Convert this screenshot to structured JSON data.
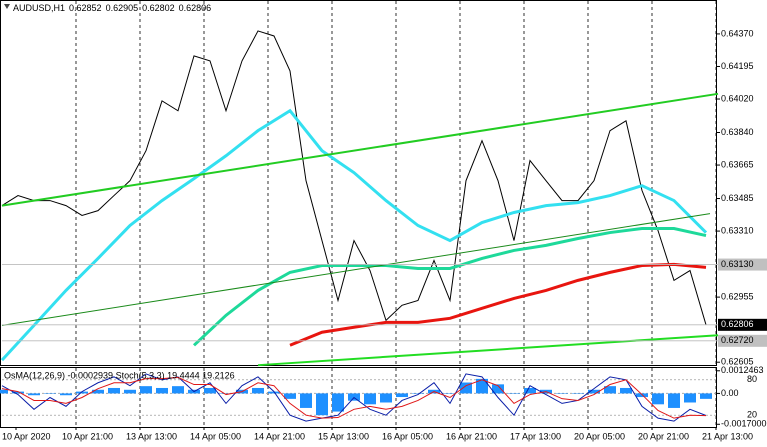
{
  "chart_data": [
    {
      "type": "line",
      "title": "AUDUSD,H1",
      "ohlc": [
        0.62852,
        0.62905,
        0.62802,
        0.62806
      ],
      "xlim": [
        0,
        179
      ],
      "ylim": [
        0.6259,
        0.64547
      ],
      "yticks": [
        {
          "value": 0.6437,
          "label": "0.64370"
        },
        0.64195,
        {
          "value": 0.6402,
          "label": "0.64020"
        },
        {
          "value": 0.6384,
          "label": "0.63840"
        },
        0.63665,
        0.63485,
        {
          "value": 0.6331,
          "label": "0.63310"
        },
        0.62955,
        0.62605
      ],
      "price_labels": [
        {
          "value": 0.6313,
          "label": "0.63130",
          "color": "#c0c0c0"
        },
        {
          "value": 0.62806,
          "color": "#000000"
        },
        {
          "value": 0.6272,
          "label": "0.62720",
          "color": "#c0c0c0"
        }
      ],
      "series": [
        {
          "name": "close",
          "color": "#000000",
          "x": [
            0,
            4,
            8,
            12,
            16,
            20,
            24,
            28,
            32,
            36,
            40,
            44,
            48,
            52,
            56,
            60,
            64,
            68,
            72,
            76,
            80,
            84,
            88,
            92,
            96,
            100,
            104,
            108,
            112,
            116,
            120,
            124,
            128,
            132,
            136,
            140,
            144,
            148,
            152,
            156,
            160,
            164,
            168,
            172,
            176
          ],
          "values": [
            0.63447,
            0.63501,
            0.63474,
            0.63474,
            0.63447,
            0.63394,
            0.6342,
            0.63501,
            0.63581,
            0.63742,
            0.6401,
            0.63957,
            0.64252,
            0.64225,
            0.63957,
            0.64225,
            0.64386,
            0.64359,
            0.64171,
            0.63581,
            0.63259,
            0.62937,
            0.63259,
            0.63098,
            0.6283,
            0.62911,
            0.62937,
            0.63152,
            0.62937,
            0.63581,
            0.63796,
            0.63581,
            0.63259,
            0.63689,
            0.63581,
            0.63474,
            0.63474,
            0.63581,
            0.6385,
            0.63903,
            0.63528,
            0.63313,
            0.63045,
            0.63098,
            0.62806
          ]
        },
        {
          "name": "ma-fast",
          "color": "#33e0f0",
          "x": [
            0,
            8,
            16,
            24,
            32,
            40,
            48,
            56,
            64,
            72,
            80,
            88,
            96,
            104,
            112,
            120,
            128,
            136,
            144,
            152,
            160,
            168,
            176
          ],
          "values": [
            0.62616,
            0.62803,
            0.62991,
            0.63163,
            0.6334,
            0.63474,
            0.63592,
            0.63715,
            0.6385,
            0.63957,
            0.63742,
            0.63624,
            0.63474,
            0.6334,
            0.63259,
            0.63356,
            0.6341,
            0.63447,
            0.63463,
            0.63501,
            0.63554,
            0.63474,
            0.63302
          ]
        },
        {
          "name": "ma-mid",
          "color": "#1ed99a",
          "x": [
            0,
            8,
            16,
            24,
            32,
            40,
            48,
            56,
            64,
            72,
            80,
            88,
            96,
            104,
            112,
            120,
            128,
            136,
            144,
            152,
            160,
            168,
            176
          ],
          "values": [
            null,
            null,
            null,
            null,
            null,
            null,
            0.62696,
            0.62857,
            0.62991,
            0.63088,
            0.63125,
            0.63125,
            0.63125,
            0.63109,
            0.63109,
            0.63163,
            0.63206,
            0.63233,
            0.6327,
            0.63302,
            0.63324,
            0.63324,
            0.63286
          ]
        },
        {
          "name": "ma-slow",
          "color": "#e8150f",
          "x": [
            0,
            8,
            16,
            24,
            32,
            40,
            48,
            56,
            64,
            72,
            80,
            88,
            96,
            104,
            112,
            120,
            128,
            136,
            144,
            152,
            160,
            168,
            176
          ],
          "values": [
            null,
            null,
            null,
            null,
            null,
            null,
            null,
            null,
            null,
            0.62696,
            0.62766,
            0.62793,
            0.62819,
            0.62819,
            0.62841,
            0.62895,
            0.62948,
            0.62991,
            0.63045,
            0.63088,
            0.63125,
            0.63131,
            0.63115
          ]
        }
      ],
      "trendlines": [
        {
          "color": "#22cc22",
          "x": [
            0,
            179
          ],
          "values": [
            0.63447,
            0.64048
          ]
        },
        {
          "color": "#1a8a1a",
          "x": [
            0,
            177
          ],
          "values": [
            0.62803,
            0.63404
          ]
        },
        {
          "color": "#22dd22",
          "x": [
            64,
            179
          ],
          "values": [
            0.62589,
            0.6275
          ]
        }
      ]
    },
    {
      "type": "bar",
      "title": "OsMA(12,26,9) -0.0002939 Stoch(5,3,3) 19.4444 19.2126",
      "xlim": [
        0,
        179
      ],
      "ylim": [
        -0.00185,
        0.0014
      ],
      "y2lim": [
        0,
        100
      ],
      "xticks": [
        {
          "value": 0,
          "label": "10 Apr 2020"
        },
        {
          "value": 15,
          "label": "10 Apr 21:00"
        },
        {
          "value": 31,
          "label": "13 Apr 13:00"
        },
        {
          "value": 47,
          "label": "14 Apr 05:00"
        },
        {
          "value": 63,
          "label": "14 Apr 21:00"
        },
        {
          "value": 79,
          "label": "15 Apr 13:00"
        },
        {
          "value": 95,
          "label": "16 Apr 05:00"
        },
        {
          "value": 111,
          "label": "16 Apr 21:00"
        },
        {
          "value": 127,
          "label": "17 Apr 13:00"
        },
        {
          "value": 143,
          "label": "20 Apr 05:00"
        },
        {
          "value": 159,
          "label": "20 Apr 21:00"
        },
        {
          "value": 175,
          "label": "21 Apr 13:00"
        }
      ],
      "yticks": [
        0.0012463,
        {
          "value": 0,
          "label": "0.00"
        },
        {
          "value": -0.0017,
          "label": "-0.0017000"
        }
      ],
      "y2ticks": [
        80,
        20
      ],
      "series": [
        {
          "name": "OsMA",
          "type": "bar",
          "color": "#1e90ff",
          "x": [
            0,
            4,
            8,
            12,
            16,
            20,
            24,
            28,
            32,
            36,
            40,
            44,
            48,
            52,
            56,
            60,
            64,
            68,
            72,
            76,
            80,
            84,
            88,
            92,
            96,
            100,
            104,
            108,
            112,
            116,
            120,
            124,
            128,
            132,
            136,
            140,
            144,
            148,
            152,
            156,
            160,
            164,
            168,
            172,
            176
          ],
          "values": [
            0.0002,
            0.0001,
            -0.0001,
            0.0,
            -0.0001,
            0.0001,
            0.0002,
            0.0003,
            0.0002,
            0.0004,
            0.0003,
            0.0004,
            0.0002,
            0.0003,
            0.0,
            0.0002,
            0.0003,
            0.0001,
            -0.0003,
            -0.0008,
            -0.0012,
            -0.001,
            -0.0004,
            -0.0006,
            -0.0005,
            -0.0002,
            0.0,
            0.0002,
            0.0,
            0.0006,
            0.0008,
            0.0005,
            0.0,
            0.0003,
            0.0002,
            0.0,
            0.0,
            0.0002,
            0.0004,
            0.0003,
            -0.0002,
            -0.0006,
            -0.0008,
            -0.0005,
            -0.0003
          ]
        },
        {
          "name": "Stoch",
          "type": "line",
          "axis": "y2",
          "color": "#0a1ea8",
          "x": [
            0,
            4,
            8,
            12,
            16,
            20,
            24,
            28,
            32,
            36,
            40,
            44,
            48,
            52,
            56,
            60,
            64,
            68,
            72,
            76,
            80,
            84,
            88,
            92,
            96,
            100,
            104,
            108,
            112,
            116,
            120,
            124,
            128,
            132,
            136,
            140,
            144,
            148,
            152,
            156,
            160,
            164,
            168,
            172,
            176
          ],
          "values": [
            70,
            55,
            30,
            50,
            35,
            60,
            75,
            85,
            70,
            90,
            80,
            85,
            60,
            75,
            40,
            70,
            85,
            60,
            20,
            10,
            15,
            20,
            50,
            30,
            20,
            45,
            55,
            75,
            40,
            90,
            85,
            50,
            20,
            70,
            55,
            40,
            45,
            65,
            85,
            80,
            35,
            15,
            10,
            30,
            19.4444
          ]
        },
        {
          "name": "Signal",
          "type": "line",
          "axis": "y2",
          "color": "#e01818",
          "x": [
            0,
            4,
            8,
            12,
            16,
            20,
            24,
            28,
            32,
            36,
            40,
            44,
            48,
            52,
            56,
            60,
            64,
            68,
            72,
            76,
            80,
            84,
            88,
            92,
            96,
            100,
            104,
            108,
            112,
            116,
            120,
            124,
            128,
            132,
            136,
            140,
            144,
            148,
            152,
            156,
            160,
            164,
            168,
            172,
            176
          ],
          "values": [
            65,
            60,
            45,
            45,
            40,
            50,
            65,
            75,
            75,
            82,
            82,
            84,
            72,
            72,
            55,
            60,
            75,
            70,
            40,
            20,
            15,
            16,
            30,
            35,
            30,
            35,
            45,
            60,
            50,
            70,
            80,
            70,
            40,
            55,
            60,
            48,
            45,
            55,
            72,
            80,
            55,
            28,
            15,
            20,
            19.2126
          ]
        }
      ]
    }
  ]
}
